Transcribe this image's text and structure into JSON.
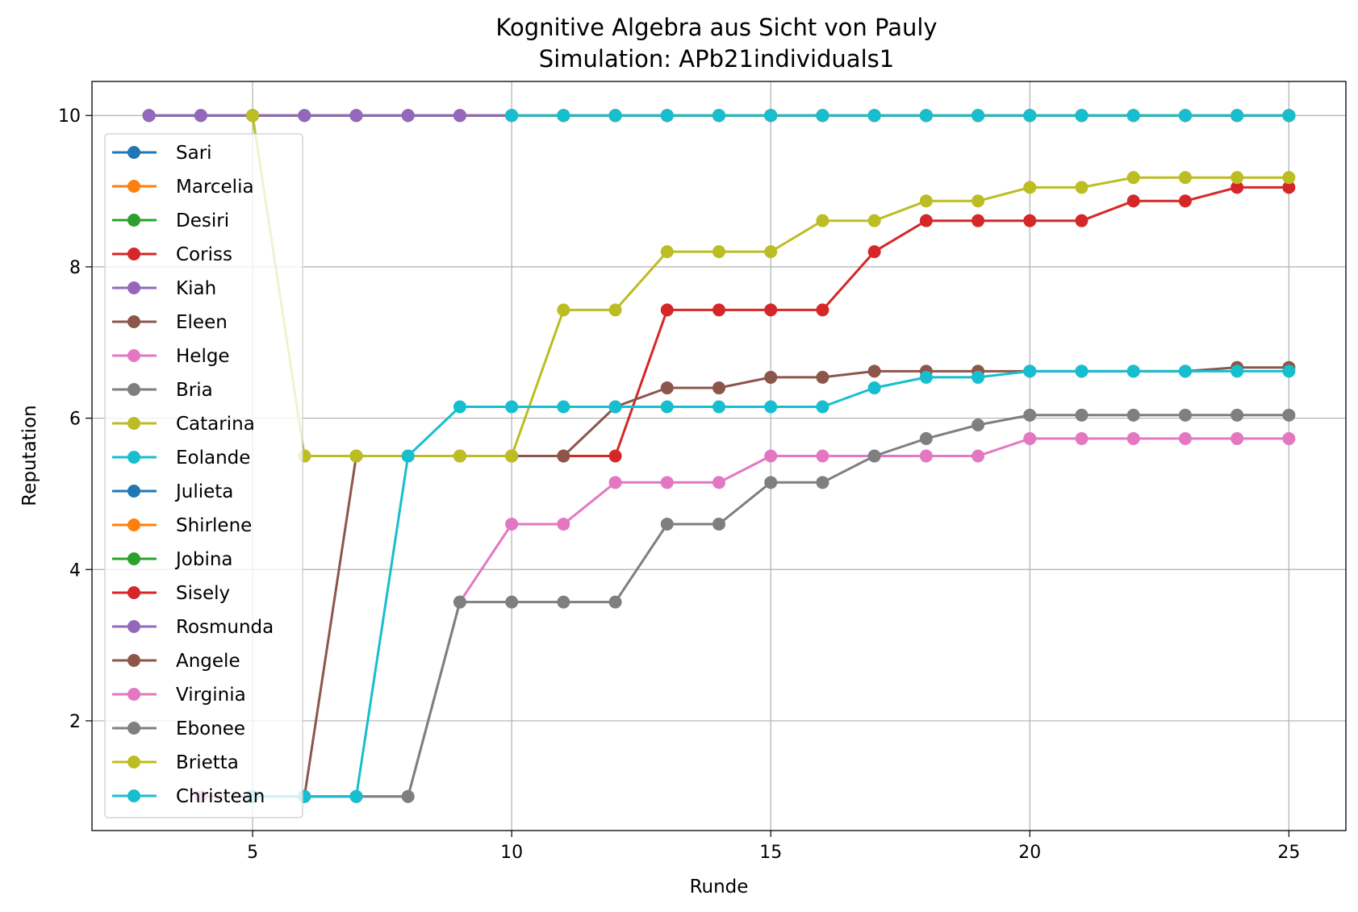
{
  "chart_data": {
    "type": "line",
    "title": "Kognitive Algebra aus Sicht von Pauly",
    "subtitle": "Simulation: APb21individuals1",
    "xlabel": "Runde",
    "ylabel": "Reputation",
    "xlim": [
      1.9,
      26.1
    ],
    "ylim": [
      0.55,
      10.45
    ],
    "xticks": [
      5,
      10,
      15,
      20,
      25
    ],
    "yticks": [
      2,
      4,
      6,
      8,
      10
    ],
    "grid": true,
    "legend_position": "left",
    "series": [
      {
        "name": "Sari",
        "color": "#1f77b4",
        "x": [
          3,
          4,
          5,
          6,
          7,
          8,
          9,
          10,
          11,
          12,
          13,
          14,
          15,
          16,
          17,
          18,
          19,
          20,
          21,
          22,
          23,
          24,
          25
        ],
        "y": [
          10,
          10,
          10,
          10,
          10,
          10,
          10,
          10,
          10,
          10,
          10,
          10,
          10,
          10,
          10,
          10,
          10,
          10,
          10,
          10,
          10,
          10,
          10
        ]
      },
      {
        "name": "Marcelia",
        "color": "#ff7f0e",
        "x": [
          3,
          4,
          5,
          6,
          7,
          8,
          9,
          10,
          11,
          12,
          13,
          14,
          15,
          16,
          17,
          18,
          19,
          20,
          21,
          22,
          23,
          24,
          25
        ],
        "y": [
          10,
          10,
          10,
          10,
          10,
          10,
          10,
          10,
          10,
          10,
          10,
          10,
          10,
          10,
          10,
          10,
          10,
          10,
          10,
          10,
          10,
          10,
          10
        ]
      },
      {
        "name": "Desiri",
        "color": "#2ca02c",
        "x": [
          3,
          4,
          5,
          6,
          7,
          8,
          9,
          10,
          11,
          12,
          13,
          14,
          15,
          16,
          17,
          18,
          19,
          20,
          21,
          22,
          23,
          24,
          25
        ],
        "y": [
          10,
          10,
          10,
          10,
          10,
          10,
          10,
          10,
          10,
          10,
          10,
          10,
          10,
          10,
          10,
          10,
          10,
          10,
          10,
          10,
          10,
          10,
          10
        ]
      },
      {
        "name": "Coriss",
        "color": "#d62728",
        "x": [
          6,
          7,
          8,
          9,
          10,
          11,
          12,
          13,
          14,
          15,
          16,
          17,
          18,
          19,
          20,
          21,
          22,
          23,
          24,
          25
        ],
        "y": [
          5.5,
          5.5,
          5.5,
          5.5,
          5.5,
          5.5,
          5.5,
          7.43,
          7.43,
          7.43,
          7.43,
          8.2,
          8.61,
          8.61,
          8.61,
          8.61,
          8.87,
          8.87,
          9.05,
          9.05
        ]
      },
      {
        "name": "Kiah",
        "color": "#9467bd",
        "x": [
          3,
          4,
          5,
          6,
          7,
          8,
          9,
          10,
          11,
          12,
          13,
          14,
          15,
          16,
          17,
          18,
          19,
          20,
          21,
          22,
          23,
          24,
          25
        ],
        "y": [
          10,
          10,
          10,
          10,
          10,
          10,
          10,
          10,
          10,
          10,
          10,
          10,
          10,
          10,
          10,
          10,
          10,
          10,
          10,
          10,
          10,
          10,
          10
        ]
      },
      {
        "name": "Eleen",
        "color": "#8c564b",
        "x": [
          6,
          7,
          8,
          9,
          10,
          11,
          12,
          13,
          14,
          15,
          16,
          17,
          18,
          19,
          20,
          21,
          22,
          23,
          24,
          25
        ],
        "y": [
          1,
          5.5,
          5.5,
          5.5,
          5.5,
          5.5,
          6.15,
          6.4,
          6.4,
          6.54,
          6.54,
          6.62,
          6.62,
          6.62,
          6.62,
          6.62,
          6.62,
          6.62,
          6.67,
          6.67
        ]
      },
      {
        "name": "Helge",
        "color": "#e377c2",
        "x": [
          4,
          5,
          6,
          7,
          8,
          9,
          10,
          11,
          12,
          13,
          14,
          15,
          16,
          17,
          18,
          19,
          20,
          21,
          22,
          23,
          24,
          25
        ],
        "y": [
          1,
          1,
          1,
          1,
          1,
          3.57,
          4.6,
          4.6,
          5.15,
          5.15,
          5.15,
          5.5,
          5.5,
          5.5,
          5.5,
          5.5,
          5.73,
          5.73,
          5.73,
          5.73,
          5.73,
          5.73
        ]
      },
      {
        "name": "Bria",
        "color": "#7f7f7f",
        "x": [
          5,
          6,
          7,
          8,
          9,
          10,
          11,
          12,
          13,
          14,
          15,
          16,
          17,
          18,
          19,
          20,
          21,
          22,
          23,
          24,
          25
        ],
        "y": [
          1,
          1,
          1,
          1,
          3.57,
          3.57,
          3.57,
          3.57,
          4.6,
          4.6,
          5.15,
          5.15,
          5.5,
          5.73,
          5.91,
          6.04,
          6.04,
          6.04,
          6.04,
          6.04,
          6.04
        ]
      },
      {
        "name": "Catarina",
        "color": "#bcbd22",
        "x": [
          5,
          6,
          7,
          8,
          9,
          10,
          11,
          12,
          13,
          14,
          15,
          16,
          17,
          18,
          19,
          20,
          21,
          22,
          23,
          24,
          25
        ],
        "y": [
          10,
          5.5,
          5.5,
          5.5,
          5.5,
          5.5,
          7.43,
          7.43,
          8.2,
          8.2,
          8.2,
          8.61,
          8.61,
          8.87,
          8.87,
          9.05,
          9.05,
          9.18,
          9.18,
          9.18,
          9.18
        ]
      },
      {
        "name": "Eolande",
        "color": "#17becf",
        "x": [
          5,
          6,
          7,
          8,
          9,
          10,
          11,
          12,
          13,
          14,
          15,
          16,
          17,
          18,
          19,
          20,
          21,
          22,
          23,
          24,
          25
        ],
        "y": [
          1,
          1,
          1,
          5.5,
          6.15,
          6.15,
          6.15,
          6.15,
          6.15,
          6.15,
          6.15,
          6.15,
          6.4,
          6.54,
          6.54,
          6.62,
          6.62,
          6.62,
          6.62,
          6.62,
          6.62
        ]
      },
      {
        "name": "Julieta",
        "color": "#1f77b4",
        "x": [
          10,
          11,
          12,
          13,
          14,
          15,
          16,
          17,
          18,
          19,
          20,
          21,
          22,
          23,
          24,
          25
        ],
        "y": [
          10,
          10,
          10,
          10,
          10,
          10,
          10,
          10,
          10,
          10,
          10,
          10,
          10,
          10,
          10,
          10
        ]
      },
      {
        "name": "Shirlene",
        "color": "#ff7f0e",
        "x": [
          10,
          11,
          12,
          13,
          14,
          15,
          16,
          17,
          18,
          19,
          20,
          21,
          22,
          23,
          24,
          25
        ],
        "y": [
          10,
          10,
          10,
          10,
          10,
          10,
          10,
          10,
          10,
          10,
          10,
          10,
          10,
          10,
          10,
          10
        ]
      },
      {
        "name": "Jobina",
        "color": "#2ca02c",
        "x": [
          10,
          11,
          12,
          13,
          14,
          15,
          16,
          17,
          18,
          19,
          20,
          21,
          22,
          23,
          24,
          25
        ],
        "y": [
          10,
          10,
          10,
          10,
          10,
          10,
          10,
          10,
          10,
          10,
          10,
          10,
          10,
          10,
          10,
          10
        ]
      },
      {
        "name": "Sisely",
        "color": "#d62728",
        "x": [
          10,
          11,
          12,
          13,
          14,
          15,
          16,
          17,
          18,
          19,
          20,
          21,
          22,
          23,
          24,
          25
        ],
        "y": [
          10,
          10,
          10,
          10,
          10,
          10,
          10,
          10,
          10,
          10,
          10,
          10,
          10,
          10,
          10,
          10
        ]
      },
      {
        "name": "Rosmunda",
        "color": "#9467bd",
        "x": [
          10,
          11,
          12,
          13,
          14,
          15,
          16,
          17,
          18,
          19,
          20,
          21,
          22,
          23,
          24,
          25
        ],
        "y": [
          10,
          10,
          10,
          10,
          10,
          10,
          10,
          10,
          10,
          10,
          10,
          10,
          10,
          10,
          10,
          10
        ]
      },
      {
        "name": "Angele",
        "color": "#8c564b",
        "x": [
          10,
          11,
          12,
          13,
          14,
          15,
          16,
          17,
          18,
          19,
          20,
          21,
          22,
          23,
          24,
          25
        ],
        "y": [
          10,
          10,
          10,
          10,
          10,
          10,
          10,
          10,
          10,
          10,
          10,
          10,
          10,
          10,
          10,
          10
        ]
      },
      {
        "name": "Virginia",
        "color": "#e377c2",
        "x": [
          10,
          11,
          12,
          13,
          14,
          15,
          16,
          17,
          18,
          19,
          20,
          21,
          22,
          23,
          24,
          25
        ],
        "y": [
          10,
          10,
          10,
          10,
          10,
          10,
          10,
          10,
          10,
          10,
          10,
          10,
          10,
          10,
          10,
          10
        ]
      },
      {
        "name": "Ebonee",
        "color": "#7f7f7f",
        "x": [
          10,
          11,
          12,
          13,
          14,
          15,
          16,
          17,
          18,
          19,
          20,
          21,
          22,
          23,
          24,
          25
        ],
        "y": [
          10,
          10,
          10,
          10,
          10,
          10,
          10,
          10,
          10,
          10,
          10,
          10,
          10,
          10,
          10,
          10
        ]
      },
      {
        "name": "Brietta",
        "color": "#bcbd22",
        "x": [
          10,
          11,
          12,
          13,
          14,
          15,
          16,
          17,
          18,
          19,
          20,
          21,
          22,
          23,
          24,
          25
        ],
        "y": [
          10,
          10,
          10,
          10,
          10,
          10,
          10,
          10,
          10,
          10,
          10,
          10,
          10,
          10,
          10,
          10
        ]
      },
      {
        "name": "Christean",
        "color": "#17becf",
        "x": [
          10,
          11,
          12,
          13,
          14,
          15,
          16,
          17,
          18,
          19,
          20,
          21,
          22,
          23,
          24,
          25
        ],
        "y": [
          10,
          10,
          10,
          10,
          10,
          10,
          10,
          10,
          10,
          10,
          10,
          10,
          10,
          10,
          10,
          10
        ]
      }
    ]
  }
}
